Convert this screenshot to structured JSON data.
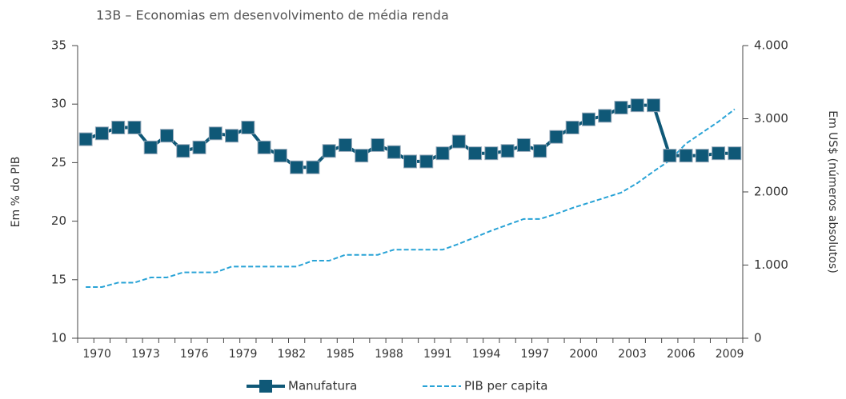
{
  "chart_data": {
    "type": "line",
    "title": "13B – Economias em desenvolvimento de média renda",
    "y_label": "Em % do PIB",
    "y2_label": "Em US$ (números absolutos)",
    "categories": [
      "1970",
      null,
      null,
      "1973",
      null,
      null,
      "1976",
      null,
      null,
      "1979",
      null,
      null,
      "1982",
      null,
      null,
      "1985",
      null,
      null,
      "1988",
      null,
      null,
      "1991",
      null,
      null,
      "1994",
      null,
      null,
      "1997",
      null,
      null,
      "2000",
      null,
      null,
      "2003",
      null,
      null,
      "2006",
      null,
      null,
      "2009",
      null
    ],
    "series": [
      {
        "name": "Manufatura",
        "color": "#0f5877",
        "marker": "square",
        "values": [
          27,
          27.5,
          28,
          28,
          26.3,
          27.3,
          26,
          26.3,
          27.5,
          27.3,
          28,
          26.3,
          25.6,
          24.6,
          24.6,
          26,
          26.5,
          25.6,
          26.5,
          25.9,
          25.1,
          25.1,
          25.8,
          26.8,
          25.8,
          25.8,
          26,
          26.5,
          26,
          27.2,
          28,
          28.7,
          29,
          29.7,
          29.9,
          29.9,
          25.6,
          25.6,
          25.6,
          25.8,
          25.8
        ]
      },
      {
        "name": "PIB per capita",
        "color": "#29a3d6",
        "dashed": true,
        "axis": "y2",
        "values": [
          700,
          700,
          760,
          760,
          830,
          830,
          900,
          900,
          900,
          980,
          980,
          980,
          980,
          980,
          1060,
          1060,
          1140,
          1140,
          1140,
          1210,
          1210,
          1210,
          1210,
          1290,
          1380,
          1470,
          1550,
          1630,
          1630,
          1700,
          1780,
          1850,
          1920,
          1990,
          2120,
          2280,
          2430,
          2660,
          2810,
          2960,
          3130
        ]
      }
    ],
    "ylim": [
      10,
      35
    ],
    "yticks": [
      10,
      15,
      20,
      25,
      30,
      35
    ],
    "y2lim": [
      0,
      4000
    ],
    "y2ticks": [
      0,
      {
        "value": 1000,
        "label": "1.000"
      },
      {
        "value": 2000,
        "label": "2.000"
      },
      {
        "value": 3000,
        "label": "3.000"
      },
      {
        "value": 4000,
        "label": "4.000"
      }
    ],
    "grid": false,
    "legend": "bottom"
  }
}
